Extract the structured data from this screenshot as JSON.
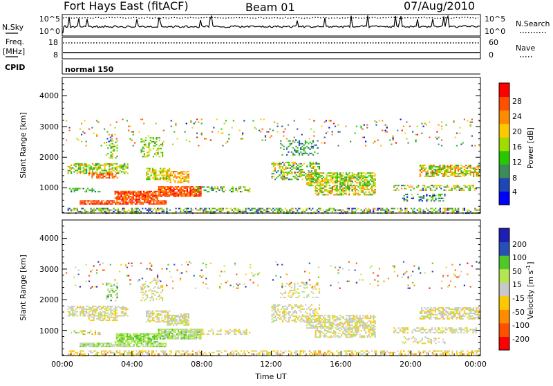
{
  "header": {
    "title": "Fort Hays East (fitACF)",
    "beam": "Beam 01",
    "date": "07/Aug/2010"
  },
  "summary_panels": {
    "nsky_label": "N.Sky",
    "nsearch_label": "N.Search",
    "nsky_ticks": [
      "10^5",
      "10^0"
    ],
    "nsearch_ticks": [
      "10^5",
      "10^0"
    ],
    "freq_label": "Freq.",
    "freq_unit": "[MHz]",
    "freq_ticks": [
      "18",
      "8"
    ],
    "nave_label": "Nave",
    "nave_ticks": [
      "60",
      "0"
    ],
    "cpid_label": "CPID",
    "cpid_value": "normal 150"
  },
  "colors": {
    "power_scale": [
      "#0000ff",
      "#1e46b4",
      "#3c8c5a",
      "#28c800",
      "#a0dc00",
      "#ffc800",
      "#ff8c00",
      "#ff5000",
      "#ff0000"
    ],
    "velocity_scale": [
      "#ff0000",
      "#ff5000",
      "#ff8c00",
      "#ffc800",
      "#c8c8c8",
      "#b4e650",
      "#50c828",
      "#2850b4",
      "#1e1eb4"
    ]
  },
  "chart_data": [
    {
      "type": "heatmap",
      "name": "Power",
      "ylabel": "Slant Range [km]",
      "yticks": [
        "1000",
        "2000",
        "3000",
        "4000"
      ],
      "ylim": [
        180,
        4600
      ],
      "xlim_hours": [
        0,
        24
      ],
      "colorbar": {
        "label": "Power [dB]",
        "ticks": [
          "4",
          "8",
          "12",
          "16",
          "20",
          "24",
          "28"
        ]
      }
    },
    {
      "type": "heatmap",
      "name": "Velocity",
      "ylabel": "Slant Range [km]",
      "yticks": [
        "1000",
        "2000",
        "3000",
        "4000"
      ],
      "ylim": [
        180,
        4600
      ],
      "xlim_hours": [
        0,
        24
      ],
      "colorbar": {
        "label": "Velocity [m s",
        "label_sup": "-1",
        "label_end": "]",
        "ticks": [
          "200",
          "100",
          "50",
          "15",
          "-15",
          "-50",
          "-100",
          "-200"
        ]
      }
    }
  ],
  "x_axis": {
    "ticks": [
      "00:00",
      "04:00",
      "08:00",
      "12:00",
      "16:00",
      "20:00",
      "00:00"
    ],
    "label": "Time UT"
  }
}
